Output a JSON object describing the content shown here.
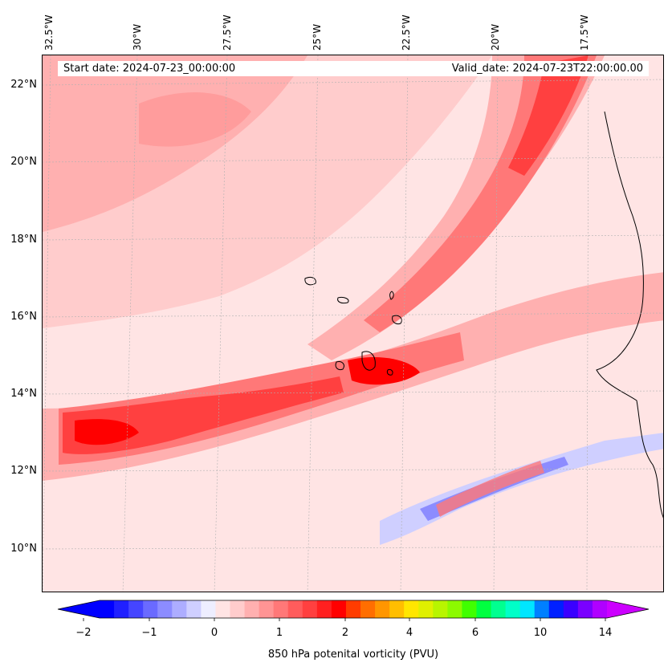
{
  "map": {
    "start_date": "Start date: 2024-07-23_00:00:00",
    "valid_date": "Valid_date: 2024-07-23T22:00:00.00",
    "longitude_labels": [
      "32.5°W",
      "30°W",
      "27.5°W",
      "25°W",
      "22.5°W",
      "20°W",
      "17.5°W"
    ],
    "latitude_labels": [
      "22°N",
      "20°N",
      "18°N",
      "16°N",
      "14°N",
      "12°N",
      "10°N"
    ],
    "region": "Cape Verde / West African coast",
    "coastlines": "black"
  },
  "colorbar": {
    "label": "850 hPa potenital vorticity (PVU)",
    "tick_labels": [
      "−2",
      "−1",
      "0",
      "1",
      "2",
      "4",
      "6",
      "10",
      "14"
    ],
    "colors": [
      "#0000ff",
      "#2020ff",
      "#4545ff",
      "#6a6aff",
      "#8c8cff",
      "#adadff",
      "#cfcfff",
      "#eeeeff",
      "#ffe4e4",
      "#ffcccc",
      "#ffb0b0",
      "#ff9494",
      "#ff7878",
      "#ff5c5c",
      "#ff4040",
      "#ff2020",
      "#ff0000",
      "#ff3c00",
      "#ff6e00",
      "#ff9600",
      "#ffbe00",
      "#ffe600",
      "#e0f000",
      "#b8f500",
      "#8cfa00",
      "#40ff00",
      "#00ff40",
      "#00ff90",
      "#00ffc8",
      "#00e6ff",
      "#0080ff",
      "#0020ff",
      "#3a00ff",
      "#7a00ff",
      "#b000ff"
    ],
    "under_color": "#0000ff",
    "over_color": "#cc00ff"
  }
}
